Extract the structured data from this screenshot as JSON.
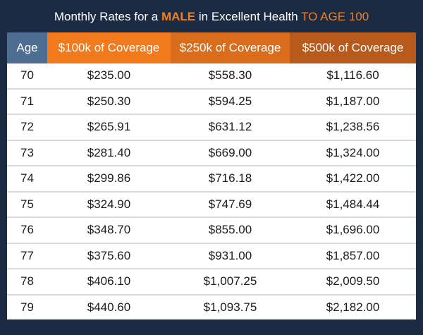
{
  "title": {
    "part1": "Monthly Rates for a ",
    "highlight1": "MALE",
    "part2": " in Excellent Health ",
    "highlight2": "TO AGE 100"
  },
  "table": {
    "headers": [
      "Age",
      "$100k of Coverage",
      "$250k of Coverage",
      "$500k of Coverage"
    ],
    "rows": [
      [
        "70",
        "$235.00",
        "$558.30",
        "$1,116.60"
      ],
      [
        "71",
        "$250.30",
        "$594.25",
        "$1,187.00"
      ],
      [
        "72",
        "$265.91",
        "$631.12",
        "$1,238.56"
      ],
      [
        "73",
        "$281.40",
        "$669.00",
        "$1,324.00"
      ],
      [
        "74",
        "$299.86",
        "$716.18",
        "$1,422.00"
      ],
      [
        "75",
        "$324.90",
        "$747.69",
        "$1,484.44"
      ],
      [
        "76",
        "$348.70",
        "$855.00",
        "$1,696.00"
      ],
      [
        "77",
        "$375.60",
        "$931.00",
        "$1,857.00"
      ],
      [
        "78",
        "$406.10",
        "$1,007.25",
        "$2,009.50"
      ],
      [
        "79",
        "$440.60",
        "$1,093.75",
        "$2,182.00"
      ]
    ]
  },
  "colors": {
    "background": "#1b2b44",
    "accent": "#f07f1f",
    "age_header": "#4d6e92",
    "header_100k": "#f07a1c",
    "header_250k": "#d96d1c",
    "header_500k": "#b85a1b"
  }
}
